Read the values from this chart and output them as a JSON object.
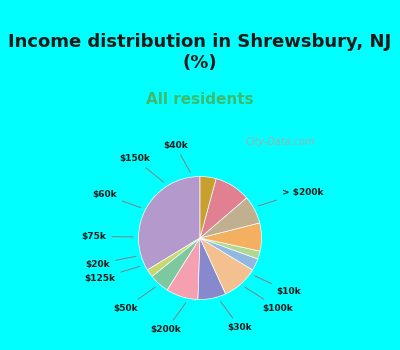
{
  "title": "Income distribution in Shrewsbury, NJ\n(%)",
  "subtitle": "All residents",
  "title_color": "#1a1a1a",
  "subtitle_color": "#2ecc71",
  "background_top": "#00ffff",
  "background_chart": "#e8f5e9",
  "watermark": "City-Data.com",
  "labels": [
    "> $200k",
    "$10k",
    "$100k",
    "$30k",
    "$200k",
    "$50k",
    "$125k",
    "$20k",
    "$75k",
    "$60k",
    "$150k",
    "$40k"
  ],
  "values": [
    32,
    2,
    5,
    8,
    7,
    9,
    3,
    2,
    7,
    7,
    9,
    4
  ],
  "colors": [
    "#b399cc",
    "#c8d86e",
    "#7ec8a0",
    "#f4a0b0",
    "#8888cc",
    "#f4c090",
    "#90b8e0",
    "#b0d890",
    "#f4b060",
    "#c0b090",
    "#e08090",
    "#c8a030"
  ],
  "startangle": 90
}
